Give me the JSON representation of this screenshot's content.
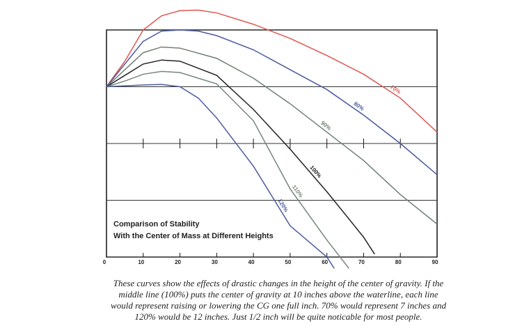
{
  "chart_data": {
    "type": "line",
    "title": [
      "Comparison of Stability",
      "With the Center of Mass at Different Heights"
    ],
    "xlim": [
      0,
      90
    ],
    "xticks": [
      0,
      10,
      20,
      30,
      40,
      50,
      60,
      70,
      80,
      90
    ],
    "ylim": [
      -3,
      1
    ],
    "yticks": [
      -3,
      -2,
      -1,
      0,
      1
    ],
    "grid": true,
    "series": [
      {
        "name": "70%",
        "color": "#e05550",
        "x": [
          0,
          5,
          10,
          15,
          20,
          25,
          30,
          40,
          50,
          60,
          70,
          80,
          90
        ],
        "values": [
          0,
          0.45,
          1.0,
          1.25,
          1.34,
          1.35,
          1.3,
          1.1,
          0.85,
          0.55,
          0.22,
          -0.2,
          -0.8
        ]
      },
      {
        "name": "80%",
        "color": "#4a5a9e",
        "x": [
          0,
          5,
          10,
          15,
          20,
          25,
          30,
          40,
          50,
          60,
          70,
          80,
          90
        ],
        "values": [
          0,
          0.4,
          0.8,
          0.98,
          1.0,
          0.98,
          0.9,
          0.65,
          0.3,
          -0.05,
          -0.5,
          -1.0,
          -1.55
        ]
      },
      {
        "name": "90%",
        "color": "#6f8073",
        "x": [
          0,
          5,
          10,
          15,
          20,
          30,
          40,
          50,
          60,
          70,
          80,
          90
        ],
        "values": [
          0,
          0.3,
          0.6,
          0.7,
          0.68,
          0.5,
          0.15,
          -0.3,
          -0.8,
          -1.3,
          -1.9,
          -2.42
        ]
      },
      {
        "name": "100%",
        "color": "#222222",
        "x": [
          0,
          5,
          10,
          15,
          20,
          30,
          40,
          50,
          60,
          70,
          73
        ],
        "values": [
          0,
          0.2,
          0.4,
          0.47,
          0.45,
          0.2,
          -0.4,
          -1.1,
          -1.85,
          -2.65,
          -2.95
        ]
      },
      {
        "name": "110%",
        "color": "#758679",
        "x": [
          0,
          5,
          10,
          15,
          20,
          30,
          40,
          50,
          60,
          66
        ],
        "values": [
          0,
          0.1,
          0.22,
          0.27,
          0.25,
          0.05,
          -0.6,
          -1.8,
          -2.7,
          -3.2
        ]
      },
      {
        "name": "120%",
        "color": "#4a5a9e",
        "x": [
          0,
          10,
          15,
          20,
          25,
          30,
          40,
          50,
          60,
          62
        ],
        "values": [
          0,
          0.03,
          0.04,
          0.0,
          -0.2,
          -0.55,
          -1.4,
          -2.45,
          -3.0,
          -3.2
        ]
      }
    ]
  },
  "caption": [
    "These curves show the effects of drastic changes in the height of the center of gravity. If the",
    "middle line (100%) puts the center of gravity at 10 inches above the waterline, each line",
    "would represent raising or lowering the CG one full inch. 70% would represent 7 inches and",
    "120% would be 12 inches. Just 1/2 inch will be quite noticable for most people."
  ]
}
